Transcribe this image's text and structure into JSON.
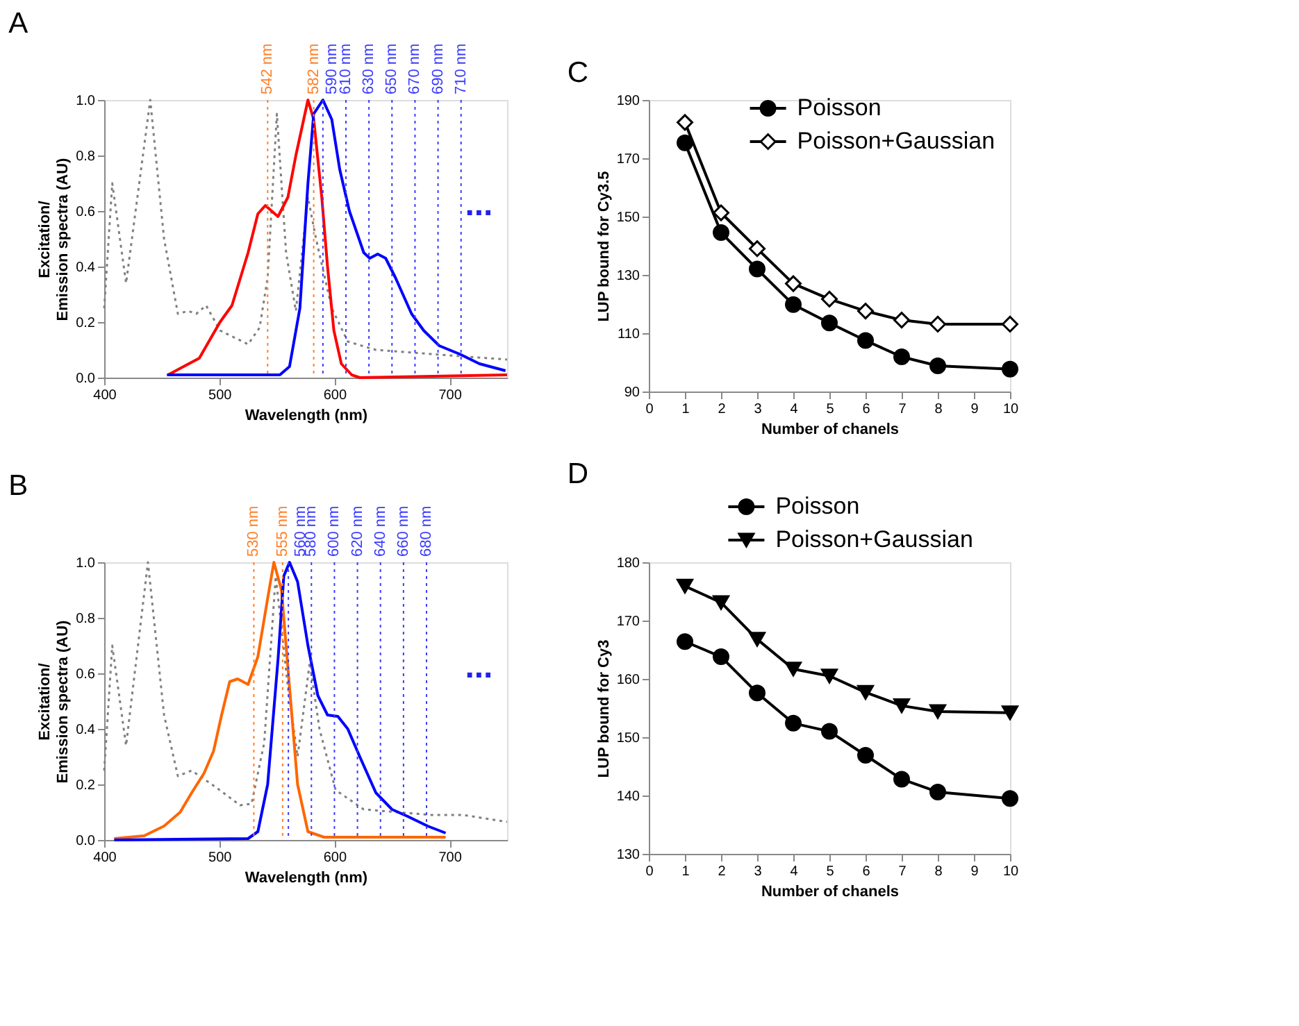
{
  "chart_data": [
    {
      "type": "line",
      "title": "A",
      "xlabel": "Wavelength  (nm)",
      "ylabel": "Excitation/\nEmission spectra (AU)",
      "xlim": [
        400,
        750
      ],
      "xticks": [
        400,
        500,
        600,
        700
      ],
      "ylim": [
        0,
        1
      ],
      "yticks": [
        {
          "value": 0,
          "label": "0.0"
        },
        {
          "value": 0.2,
          "label": "0.2"
        },
        {
          "value": 0.4,
          "label": "0.4"
        },
        {
          "value": 0.6,
          "label": "0.6"
        },
        {
          "value": 0.8,
          "label": "0.8"
        },
        {
          "value": 1,
          "label": "1.0"
        }
      ],
      "series": [
        {
          "color": "#808080",
          "line_style": "dotted",
          "x": [
            400,
            407,
            419,
            440,
            452,
            464,
            473,
            480,
            488.5,
            500.6,
            525,
            535,
            542,
            550,
            558,
            566.5,
            577,
            584,
            597.7,
            611.6,
            636,
            684,
            750
          ],
          "values": [
            0.25,
            0.7,
            0.34,
            1.0,
            0.5,
            0.23,
            0.24,
            0.23,
            0.26,
            0.17,
            0.12,
            0.18,
            0.36,
            0.95,
            0.45,
            0.24,
            0.65,
            0.5,
            0.25,
            0.13,
            0.1,
            0.085,
            0.065
          ]
        },
        {
          "color": "#ff0000",
          "x": [
            455.5,
            482.6,
            500.6,
            511,
            525,
            533.5,
            540,
            551,
            559.6,
            566.5,
            577,
            582,
            589,
            594,
            599.5,
            606,
            615,
            622,
            750
          ],
          "values": [
            0.01,
            0.07,
            0.2,
            0.26,
            0.45,
            0.59,
            0.62,
            0.58,
            0.65,
            0.8,
            1.0,
            0.93,
            0.65,
            0.4,
            0.17,
            0.05,
            0.01,
            0.0,
            0.01
          ]
        },
        {
          "color": "#0000ff",
          "x": [
            454.5,
            552.6,
            561,
            570,
            577,
            582,
            590,
            597.7,
            604.6,
            613,
            625.5,
            630.7,
            637.6,
            644.5,
            653,
            667,
            677.5,
            691,
            708.7,
            726,
            748.6
          ],
          "values": [
            0.01,
            0.01,
            0.04,
            0.25,
            0.7,
            0.95,
            1.0,
            0.93,
            0.75,
            0.6,
            0.45,
            0.43,
            0.445,
            0.43,
            0.36,
            0.23,
            0.17,
            0.115,
            0.085,
            0.05,
            0.025
          ]
        }
      ],
      "ref_lines": [
        {
          "axis": "x",
          "value": 542,
          "label": "542 nm",
          "color": "#ff7f27",
          "line_style": "dotted"
        },
        {
          "axis": "x",
          "value": 582,
          "label": "582 nm",
          "color": "#ff7f27",
          "line_style": "dotted"
        },
        {
          "axis": "x",
          "value": 590,
          "label": "590 nm",
          "color": "#3b3bff",
          "line_style": "dotted"
        },
        {
          "axis": "x",
          "value": 610,
          "label": "610 nm",
          "color": "#3b3bff",
          "line_style": "dotted"
        },
        {
          "axis": "x",
          "value": 630,
          "label": "630 nm",
          "color": "#3b3bff",
          "line_style": "dotted"
        },
        {
          "axis": "x",
          "value": 650,
          "label": "650 nm",
          "color": "#3b3bff",
          "line_style": "dotted"
        },
        {
          "axis": "x",
          "value": 670,
          "label": "670 nm",
          "color": "#3b3bff",
          "line_style": "dotted"
        },
        {
          "axis": "x",
          "value": 690,
          "label": "690 nm",
          "color": "#3b3bff",
          "line_style": "dotted"
        },
        {
          "axis": "x",
          "value": 710,
          "label": "710 nm",
          "color": "#3b3bff",
          "line_style": "dotted"
        }
      ],
      "annotations": [
        "..."
      ]
    },
    {
      "type": "line",
      "title": "C",
      "xlabel": "Number of chanels",
      "ylabel": "LUP bound for Cy3.5",
      "xlim": [
        0,
        10
      ],
      "xticks": [
        0,
        1,
        2,
        3,
        4,
        5,
        6,
        7,
        8,
        9,
        10
      ],
      "ylim": [
        90,
        190
      ],
      "yticks": [
        90,
        110,
        130,
        150,
        170,
        190
      ],
      "legend": "top right",
      "series": [
        {
          "name": "Poisson",
          "color": "#000000",
          "marker": "circle",
          "x": [
            1,
            2,
            3,
            4,
            5,
            6,
            7,
            8,
            10
          ],
          "values": [
            175.3,
            144.5,
            132,
            119.8,
            113.5,
            107.5,
            101.9,
            98.8,
            97.7
          ]
        },
        {
          "name": "Poisson+Gaussian",
          "color": "#000000",
          "marker": "diamond",
          "x": [
            1,
            2,
            3,
            4,
            5,
            6,
            7,
            8,
            10
          ],
          "values": [
            182.3,
            151.3,
            139,
            127,
            121.7,
            117.6,
            114.5,
            113.1,
            113.1
          ]
        }
      ]
    },
    {
      "type": "line",
      "title": "B",
      "xlabel": "Wavelength  (nm)",
      "ylabel": "Excitation/\nEmission spectra (AU)",
      "xlim": [
        400,
        750
      ],
      "xticks": [
        400,
        500,
        600,
        700
      ],
      "ylim": [
        0,
        1
      ],
      "yticks": [
        {
          "value": 0,
          "label": "0.0"
        },
        {
          "value": 0.2,
          "label": "0.2"
        },
        {
          "value": 0.4,
          "label": "0.4"
        },
        {
          "value": 0.6,
          "label": "0.6"
        },
        {
          "value": 0.8,
          "label": "0.8"
        },
        {
          "value": 1,
          "label": "1.0"
        }
      ],
      "series": [
        {
          "color": "#808080",
          "line_style": "dotted",
          "x": [
            400,
            407,
            419,
            438,
            452,
            464,
            476,
            497,
            518,
            528,
            539,
            549,
            559.6,
            568,
            578.6,
            587,
            601,
            625.5,
            684,
            712,
            750
          ],
          "values": [
            0.25,
            0.7,
            0.34,
            1.0,
            0.45,
            0.23,
            0.25,
            0.19,
            0.125,
            0.13,
            0.35,
            0.95,
            0.55,
            0.3,
            0.64,
            0.4,
            0.18,
            0.11,
            0.09,
            0.09,
            0.065
          ]
        },
        {
          "color": "#ff6600",
          "x": [
            408.7,
            434.7,
            452,
            466,
            476,
            486.7,
            495,
            502,
            509,
            516,
            525,
            533.5,
            542,
            547.4,
            554,
            561,
            568,
            577,
            591,
            696.6
          ],
          "values": [
            0.005,
            0.015,
            0.05,
            0.1,
            0.17,
            0.24,
            0.32,
            0.45,
            0.57,
            0.58,
            0.56,
            0.66,
            0.87,
            1.0,
            0.9,
            0.55,
            0.2,
            0.03,
            0.01,
            0.01
          ]
        },
        {
          "color": "#0000ff",
          "x": [
            408.7,
            525,
            533.5,
            542,
            551,
            556,
            561,
            568,
            577,
            585.6,
            594,
            603,
            611.6,
            622,
            636,
            650,
            663.6,
            681,
            696.6
          ],
          "values": [
            0.0,
            0.005,
            0.03,
            0.2,
            0.65,
            0.95,
            1.0,
            0.93,
            0.7,
            0.52,
            0.45,
            0.445,
            0.4,
            0.3,
            0.17,
            0.11,
            0.085,
            0.05,
            0.025
          ]
        }
      ],
      "ref_lines": [
        {
          "axis": "x",
          "value": 530,
          "label": "530 nm",
          "color": "#ff7f27",
          "line_style": "dotted"
        },
        {
          "axis": "x",
          "value": 555,
          "label": "555 nm",
          "color": "#ff7f27",
          "line_style": "dotted"
        },
        {
          "axis": "x",
          "value": 560,
          "label": "560 nm",
          "color": "#3b3bff",
          "line_style": "dotted"
        },
        {
          "axis": "x",
          "value": 580,
          "label": "580 nm",
          "color": "#3b3bff",
          "line_style": "dotted"
        },
        {
          "axis": "x",
          "value": 600,
          "label": "600 nm",
          "color": "#3b3bff",
          "line_style": "dotted"
        },
        {
          "axis": "x",
          "value": 620,
          "label": "620 nm",
          "color": "#3b3bff",
          "line_style": "dotted"
        },
        {
          "axis": "x",
          "value": 640,
          "label": "640 nm",
          "color": "#3b3bff",
          "line_style": "dotted"
        },
        {
          "axis": "x",
          "value": 660,
          "label": "660 nm",
          "color": "#3b3bff",
          "line_style": "dotted"
        },
        {
          "axis": "x",
          "value": 680,
          "label": "680 nm",
          "color": "#3b3bff",
          "line_style": "dotted"
        }
      ],
      "annotations": [
        "..."
      ]
    },
    {
      "type": "line",
      "title": "D",
      "xlabel": "Number of chanels",
      "ylabel": "LUP bound for Cy3",
      "xlim": [
        0,
        10
      ],
      "xticks": [
        0,
        1,
        2,
        3,
        4,
        5,
        6,
        7,
        8,
        9,
        10
      ],
      "ylim": [
        130,
        180
      ],
      "yticks": [
        130,
        140,
        150,
        160,
        170,
        180
      ],
      "legend": "top",
      "series": [
        {
          "name": "Poisson",
          "color": "#000000",
          "marker": "circle",
          "x": [
            1,
            2,
            3,
            4,
            5,
            6,
            7,
            8,
            10
          ],
          "values": [
            166.4,
            163.8,
            157.6,
            152.4,
            151,
            146.9,
            142.8,
            140.6,
            139.5
          ]
        },
        {
          "name": "Poisson+Gaussian",
          "color": "#000000",
          "marker": "triangle",
          "x": [
            1,
            2,
            3,
            4,
            5,
            6,
            7,
            8,
            10
          ],
          "values": [
            175.9,
            173.1,
            166.8,
            161.7,
            160.5,
            157.7,
            155.4,
            154.4,
            154.2
          ]
        }
      ]
    }
  ]
}
